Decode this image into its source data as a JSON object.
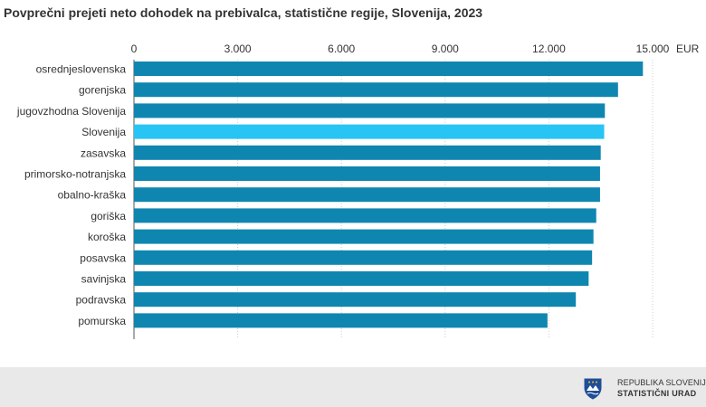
{
  "colors": {
    "bar": "#0f86b0",
    "highlight": "#28c4f4",
    "grid": "#cccccc",
    "text": "#333333",
    "footer_bg": "#e9e9e9"
  },
  "footer": {
    "logo_icon": "coat-of-arms-shield-icon",
    "org_line1": "REPUBLIKA SLOVENIJA",
    "org_line2": "STATISTIČNI URAD"
  },
  "chart_data": {
    "type": "bar",
    "orientation": "horizontal",
    "title": "Povprečni prejeti neto dohodek na prebivalca, statistične regije, Slovenija, 2023",
    "xunit": "EUR",
    "xlim": [
      0,
      15000
    ],
    "xticks": [
      0,
      3000,
      6000,
      9000,
      12000,
      15000
    ],
    "xtick_labels": [
      "0",
      "3.000",
      "6.000",
      "9.000",
      "12.000",
      "15.000"
    ],
    "grid": "vertical",
    "categories": [
      "osrednjeslovenska",
      "gorenjska",
      "jugovzhodna Slovenija",
      "Slovenija",
      "zasavska",
      "primorsko-notranjska",
      "obalno-kraška",
      "goriška",
      "koroška",
      "posavska",
      "savinjska",
      "podravska",
      "pomurska"
    ],
    "values": [
      14720,
      14000,
      13620,
      13600,
      13500,
      13480,
      13480,
      13370,
      13290,
      13250,
      13150,
      12780,
      11960
    ],
    "highlighted": [
      "Slovenija"
    ]
  }
}
